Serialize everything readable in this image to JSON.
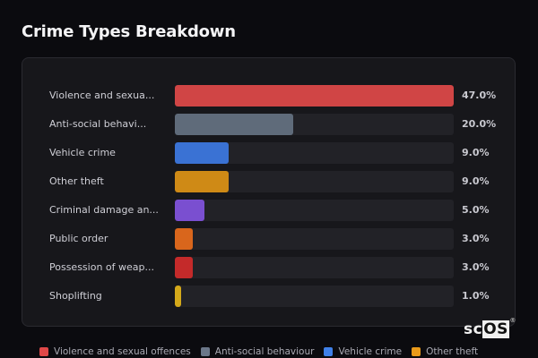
{
  "header": {
    "title": "Crime Types Breakdown"
  },
  "chart_data": {
    "type": "bar",
    "orientation": "horizontal",
    "title": "Crime Types Breakdown",
    "categories": [
      "Violence and sexual offences",
      "Anti-social behaviour",
      "Vehicle crime",
      "Other theft",
      "Criminal damage and arson",
      "Public order",
      "Possession of weapons",
      "Shoplifting"
    ],
    "display_labels": [
      "Violence and sexua...",
      "Anti-social behavi...",
      "Vehicle crime",
      "Other theft",
      "Criminal damage an...",
      "Public order",
      "Possession of weap...",
      "Shoplifting"
    ],
    "values": [
      47.0,
      20.0,
      9.0,
      9.0,
      5.0,
      3.0,
      3.0,
      1.0
    ],
    "value_labels": [
      "47.0%",
      "20.0%",
      "9.0%",
      "9.0%",
      "5.0%",
      "3.0%",
      "3.0%",
      "1.0%"
    ],
    "colors": [
      "#d04545",
      "#5f6b7a",
      "#3a72d4",
      "#cf8a16",
      "#7a4fd0",
      "#d9661c",
      "#c42a2a",
      "#d4a91a"
    ],
    "xlabel": "",
    "ylabel": "",
    "unit": "%",
    "xlim": [
      0,
      47
    ],
    "grid": false,
    "legend": {
      "position": "bottom",
      "entries": [
        {
          "label": "Violence and sexual offences",
          "color": "#e04848"
        },
        {
          "label": "Anti-social behaviour",
          "color": "#6b7789"
        },
        {
          "label": "Vehicle crime",
          "color": "#3f80e8"
        },
        {
          "label": "Other theft",
          "color": "#e99a1a"
        }
      ]
    }
  },
  "watermark": {
    "prefix": "sc",
    "boxed": "OS",
    "mark": "®"
  }
}
